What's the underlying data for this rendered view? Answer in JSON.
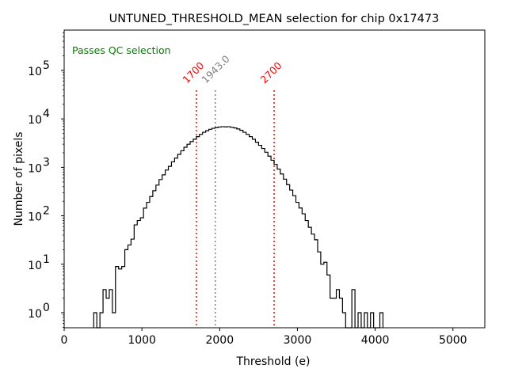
{
  "chart_data": {
    "type": "histogram",
    "title": "UNTUNED_THRESHOLD_MEAN selection for chip 0x17473",
    "xlabel": "Threshold (e)",
    "ylabel": "Number of pixels",
    "xlim": [
      0,
      5410
    ],
    "ylim": [
      0.49,
      680000
    ],
    "yscale": "log",
    "x_ticks": [
      0,
      1000,
      2000,
      3000,
      4000,
      5000
    ],
    "x_tick_labels": [
      "0",
      "1000",
      "2000",
      "3000",
      "4000",
      "5000"
    ],
    "y_ticks": [
      1,
      10,
      100,
      1000,
      10000,
      100000
    ],
    "y_tick_labels": [
      {
        "base": "10",
        "exp": "0"
      },
      {
        "base": "10",
        "exp": "1"
      },
      {
        "base": "10",
        "exp": "2"
      },
      {
        "base": "10",
        "exp": "3"
      },
      {
        "base": "10",
        "exp": "4"
      },
      {
        "base": "10",
        "exp": "5"
      }
    ],
    "bin_start": 380,
    "bin_width": 40,
    "counts": [
      1,
      0,
      1,
      3,
      2,
      3,
      1,
      9,
      8,
      9,
      20,
      25,
      33,
      65,
      80,
      91,
      144,
      190,
      250,
      330,
      430,
      560,
      700,
      880,
      1050,
      1300,
      1550,
      1850,
      2200,
      2600,
      3000,
      3400,
      3800,
      4300,
      4800,
      5300,
      5700,
      6100,
      6400,
      6600,
      6800,
      6900,
      6850,
      6900,
      6700,
      6500,
      6200,
      5800,
      5300,
      4800,
      4300,
      3800,
      3300,
      2850,
      2450,
      2050,
      1700,
      1400,
      1150,
      920,
      730,
      570,
      440,
      340,
      260,
      190,
      145,
      110,
      80,
      58,
      42,
      32,
      18,
      10,
      11,
      6,
      2,
      2,
      3,
      2,
      1,
      0,
      0,
      3,
      0,
      1,
      0,
      1,
      0,
      1,
      0,
      0,
      1
    ],
    "annotations": [
      {
        "text": "Passes QC selection",
        "color": "#008000",
        "position": "top-left"
      }
    ],
    "vlines": [
      {
        "x": 1700,
        "label": "1700",
        "color": "#ff0000",
        "style": "dotted"
      },
      {
        "x": 1943.0,
        "label": "1943.0",
        "color": "#808080",
        "style": "dotted"
      },
      {
        "x": 2700,
        "label": "2700",
        "color": "#ff0000",
        "style": "dotted"
      }
    ],
    "grid": false,
    "legend": "none",
    "line_color": "#000000"
  }
}
